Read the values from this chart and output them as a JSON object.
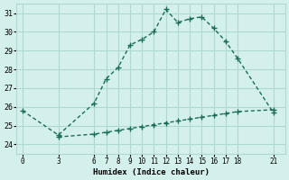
{
  "xlabel": "Humidex (Indice chaleur)",
  "ylabel": "",
  "background_color": "#d4f0ec",
  "line_color": "#1a6b5a",
  "grid_color": "#b0d8d2",
  "ylim": [
    23.5,
    31.5
  ],
  "xlim": [
    -0.5,
    22
  ],
  "yticks": [
    24,
    25,
    26,
    27,
    28,
    29,
    30,
    31
  ],
  "xticks": [
    0,
    3,
    6,
    7,
    8,
    9,
    10,
    11,
    12,
    13,
    14,
    15,
    16,
    17,
    18,
    21
  ],
  "upper_x": [
    0,
    3,
    6,
    7,
    8,
    9,
    10,
    11,
    12,
    13,
    14,
    15,
    16,
    17,
    18,
    21
  ],
  "upper_y": [
    25.8,
    24.5,
    26.2,
    27.5,
    28.1,
    29.3,
    29.6,
    30.0,
    31.2,
    30.5,
    30.7,
    30.8,
    30.2,
    29.5,
    28.6,
    25.7
  ],
  "lower_x": [
    3,
    6,
    7,
    8,
    9,
    10,
    11,
    12,
    13,
    14,
    15,
    16,
    17,
    18,
    21
  ],
  "lower_y": [
    24.4,
    24.55,
    24.65,
    24.75,
    24.85,
    24.95,
    25.05,
    25.15,
    25.25,
    25.35,
    25.45,
    25.55,
    25.65,
    25.75,
    25.85
  ]
}
